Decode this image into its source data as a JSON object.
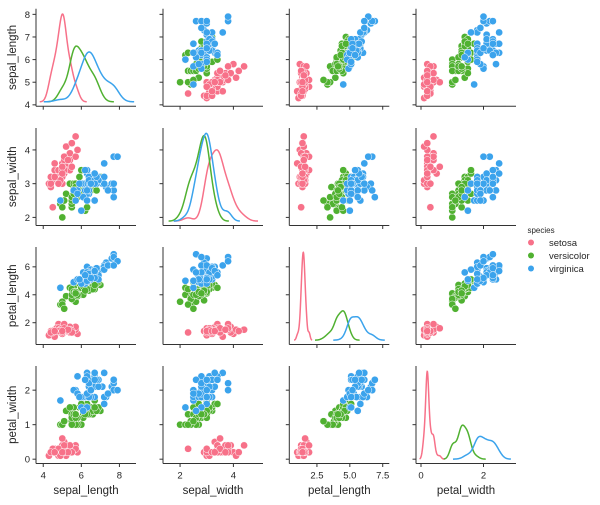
{
  "chart_data": {
    "type": "scatter",
    "kind": "pairplot",
    "diagonal": "kde",
    "hue": "species",
    "variables": [
      "sepal_length",
      "sepal_width",
      "petal_length",
      "petal_width"
    ],
    "axes": {
      "sepal_length": {
        "xlim": [
          3.62,
          8.87
        ],
        "ylim": [
          3.94,
          8.25
        ],
        "ticks": [
          4,
          5,
          6,
          7,
          8
        ],
        "xticks": [
          "4",
          "6",
          "8"
        ],
        "yticks": [
          "4",
          "5",
          "6",
          "7",
          "8"
        ]
      },
      "sepal_width": {
        "xlim": [
          1.36,
          5.11
        ],
        "ylim": [
          1.76,
          4.65
        ],
        "xticks": [
          "2",
          "4"
        ],
        "yticks": [
          "2",
          "3",
          "4"
        ]
      },
      "petal_length": {
        "xlim": [
          0.4,
          8.0
        ],
        "ylim": [
          0.44,
          7.42
        ],
        "xticks": [
          "2.5",
          "5.0",
          "7.5"
        ],
        "yticks": [
          "2",
          "4",
          "6"
        ]
      },
      "petal_width": {
        "xlim": [
          -0.16,
          3.04
        ],
        "ylim": [
          -0.125,
          2.7
        ],
        "xticks": [
          "0",
          "2"
        ],
        "yticks": [
          "0",
          "1",
          "2"
        ]
      }
    },
    "grid": false,
    "legend": {
      "title": "species",
      "placement": "right"
    },
    "series": [
      {
        "name": "setosa",
        "color": "#f77189",
        "values": [
          [
            5.1,
            3.5,
            1.4,
            0.2
          ],
          [
            4.9,
            3.0,
            1.4,
            0.2
          ],
          [
            4.7,
            3.2,
            1.3,
            0.2
          ],
          [
            4.6,
            3.1,
            1.5,
            0.2
          ],
          [
            5.0,
            3.6,
            1.4,
            0.2
          ],
          [
            5.4,
            3.9,
            1.7,
            0.4
          ],
          [
            4.6,
            3.4,
            1.4,
            0.3
          ],
          [
            5.0,
            3.4,
            1.5,
            0.2
          ],
          [
            4.4,
            2.9,
            1.4,
            0.2
          ],
          [
            4.9,
            3.1,
            1.5,
            0.1
          ],
          [
            5.4,
            3.7,
            1.5,
            0.2
          ],
          [
            4.8,
            3.4,
            1.6,
            0.2
          ],
          [
            4.8,
            3.0,
            1.4,
            0.1
          ],
          [
            4.3,
            3.0,
            1.1,
            0.1
          ],
          [
            5.8,
            4.0,
            1.2,
            0.2
          ],
          [
            5.7,
            4.4,
            1.5,
            0.4
          ],
          [
            5.4,
            3.9,
            1.3,
            0.4
          ],
          [
            5.1,
            3.5,
            1.4,
            0.3
          ],
          [
            5.7,
            3.8,
            1.7,
            0.3
          ],
          [
            5.1,
            3.8,
            1.5,
            0.3
          ],
          [
            5.4,
            3.4,
            1.7,
            0.2
          ],
          [
            5.1,
            3.7,
            1.5,
            0.4
          ],
          [
            4.6,
            3.6,
            1.0,
            0.2
          ],
          [
            5.1,
            3.3,
            1.7,
            0.5
          ],
          [
            4.8,
            3.4,
            1.9,
            0.2
          ],
          [
            5.0,
            3.0,
            1.6,
            0.2
          ],
          [
            5.0,
            3.4,
            1.6,
            0.4
          ],
          [
            5.2,
            3.5,
            1.5,
            0.2
          ],
          [
            5.2,
            3.4,
            1.4,
            0.2
          ],
          [
            4.7,
            3.2,
            1.6,
            0.2
          ],
          [
            4.8,
            3.1,
            1.6,
            0.2
          ],
          [
            5.4,
            3.4,
            1.5,
            0.4
          ],
          [
            5.2,
            4.1,
            1.5,
            0.1
          ],
          [
            5.5,
            4.2,
            1.4,
            0.2
          ],
          [
            4.9,
            3.1,
            1.5,
            0.1
          ],
          [
            5.0,
            3.2,
            1.2,
            0.2
          ],
          [
            5.5,
            3.5,
            1.3,
            0.2
          ],
          [
            4.9,
            3.1,
            1.5,
            0.1
          ],
          [
            4.4,
            3.0,
            1.3,
            0.2
          ],
          [
            5.1,
            3.4,
            1.5,
            0.2
          ],
          [
            5.0,
            3.5,
            1.3,
            0.3
          ],
          [
            4.5,
            2.3,
            1.3,
            0.3
          ],
          [
            4.4,
            3.2,
            1.3,
            0.2
          ],
          [
            5.0,
            3.5,
            1.6,
            0.6
          ],
          [
            5.1,
            3.8,
            1.9,
            0.4
          ],
          [
            4.8,
            3.0,
            1.4,
            0.3
          ],
          [
            5.1,
            3.8,
            1.6,
            0.2
          ],
          [
            4.6,
            3.2,
            1.4,
            0.2
          ],
          [
            5.3,
            3.7,
            1.5,
            0.2
          ],
          [
            5.0,
            3.3,
            1.4,
            0.2
          ]
        ]
      },
      {
        "name": "versicolor",
        "color": "#50b131",
        "values": [
          [
            7.0,
            3.2,
            4.7,
            1.4
          ],
          [
            6.4,
            3.2,
            4.5,
            1.5
          ],
          [
            6.9,
            3.1,
            4.9,
            1.5
          ],
          [
            5.5,
            2.3,
            4.0,
            1.3
          ],
          [
            6.5,
            2.8,
            4.6,
            1.5
          ],
          [
            5.7,
            2.8,
            4.5,
            1.3
          ],
          [
            6.3,
            3.3,
            4.7,
            1.6
          ],
          [
            4.9,
            2.4,
            3.3,
            1.0
          ],
          [
            6.6,
            2.9,
            4.6,
            1.3
          ],
          [
            5.2,
            2.7,
            3.9,
            1.4
          ],
          [
            5.0,
            2.0,
            3.5,
            1.0
          ],
          [
            5.9,
            3.0,
            4.2,
            1.5
          ],
          [
            6.0,
            2.2,
            4.0,
            1.0
          ],
          [
            6.1,
            2.9,
            4.7,
            1.4
          ],
          [
            5.6,
            2.9,
            3.6,
            1.3
          ],
          [
            6.7,
            3.1,
            4.4,
            1.4
          ],
          [
            5.6,
            3.0,
            4.5,
            1.5
          ],
          [
            5.8,
            2.7,
            4.1,
            1.0
          ],
          [
            6.2,
            2.2,
            4.5,
            1.5
          ],
          [
            5.6,
            2.5,
            3.9,
            1.1
          ],
          [
            5.9,
            3.2,
            4.8,
            1.8
          ],
          [
            6.1,
            2.8,
            4.0,
            1.3
          ],
          [
            6.3,
            2.5,
            4.9,
            1.5
          ],
          [
            6.1,
            2.8,
            4.7,
            1.2
          ],
          [
            6.4,
            2.9,
            4.3,
            1.3
          ],
          [
            6.6,
            3.0,
            4.4,
            1.4
          ],
          [
            6.8,
            2.8,
            4.8,
            1.4
          ],
          [
            6.7,
            3.0,
            5.0,
            1.7
          ],
          [
            6.0,
            2.9,
            4.5,
            1.5
          ],
          [
            5.7,
            2.6,
            3.5,
            1.0
          ],
          [
            5.5,
            2.4,
            3.8,
            1.1
          ],
          [
            5.5,
            2.4,
            3.7,
            1.0
          ],
          [
            5.8,
            2.7,
            3.9,
            1.2
          ],
          [
            6.0,
            2.7,
            5.1,
            1.6
          ],
          [
            5.4,
            3.0,
            4.5,
            1.5
          ],
          [
            6.0,
            3.4,
            4.5,
            1.6
          ],
          [
            6.7,
            3.1,
            4.7,
            1.5
          ],
          [
            6.3,
            2.3,
            4.4,
            1.3
          ],
          [
            5.6,
            3.0,
            4.1,
            1.3
          ],
          [
            5.5,
            2.5,
            4.0,
            1.3
          ],
          [
            5.5,
            2.6,
            4.4,
            1.2
          ],
          [
            6.1,
            3.0,
            4.6,
            1.4
          ],
          [
            5.8,
            2.6,
            4.0,
            1.2
          ],
          [
            5.0,
            2.3,
            3.3,
            1.0
          ],
          [
            5.6,
            2.7,
            4.2,
            1.3
          ],
          [
            5.7,
            3.0,
            4.2,
            1.2
          ],
          [
            5.7,
            2.9,
            4.2,
            1.3
          ],
          [
            6.2,
            2.9,
            4.3,
            1.3
          ],
          [
            5.1,
            2.5,
            3.0,
            1.1
          ],
          [
            5.7,
            2.8,
            4.1,
            1.3
          ]
        ]
      },
      {
        "name": "virginica",
        "color": "#3ba3ec",
        "values": [
          [
            6.3,
            3.3,
            6.0,
            2.5
          ],
          [
            5.8,
            2.7,
            5.1,
            1.9
          ],
          [
            7.1,
            3.0,
            5.9,
            2.1
          ],
          [
            6.3,
            2.9,
            5.6,
            1.8
          ],
          [
            6.5,
            3.0,
            5.8,
            2.2
          ],
          [
            7.6,
            3.0,
            6.6,
            2.1
          ],
          [
            4.9,
            2.5,
            4.5,
            1.7
          ],
          [
            7.3,
            2.9,
            6.3,
            1.8
          ],
          [
            6.7,
            2.5,
            5.8,
            1.8
          ],
          [
            7.2,
            3.6,
            6.1,
            2.5
          ],
          [
            6.5,
            3.2,
            5.1,
            2.0
          ],
          [
            6.4,
            2.7,
            5.3,
            1.9
          ],
          [
            6.8,
            3.0,
            5.5,
            2.1
          ],
          [
            5.7,
            2.5,
            5.0,
            2.0
          ],
          [
            5.8,
            2.8,
            5.1,
            2.4
          ],
          [
            6.4,
            3.2,
            5.3,
            2.3
          ],
          [
            6.5,
            3.0,
            5.5,
            1.8
          ],
          [
            7.7,
            3.8,
            6.7,
            2.2
          ],
          [
            7.7,
            2.6,
            6.9,
            2.3
          ],
          [
            6.0,
            2.2,
            5.0,
            1.5
          ],
          [
            6.9,
            3.2,
            5.7,
            2.3
          ],
          [
            5.6,
            2.8,
            4.9,
            2.0
          ],
          [
            7.7,
            2.8,
            6.7,
            2.0
          ],
          [
            6.3,
            2.7,
            4.9,
            1.8
          ],
          [
            6.7,
            3.3,
            5.7,
            2.1
          ],
          [
            7.2,
            3.2,
            6.0,
            1.8
          ],
          [
            6.2,
            2.8,
            4.8,
            1.8
          ],
          [
            6.1,
            3.0,
            4.9,
            1.8
          ],
          [
            6.4,
            2.8,
            5.6,
            2.1
          ],
          [
            7.2,
            3.0,
            5.8,
            1.6
          ],
          [
            7.4,
            2.8,
            6.1,
            1.9
          ],
          [
            7.9,
            3.8,
            6.4,
            2.0
          ],
          [
            6.4,
            2.8,
            5.6,
            2.2
          ],
          [
            6.3,
            2.8,
            5.1,
            1.5
          ],
          [
            6.1,
            2.6,
            5.6,
            1.4
          ],
          [
            7.7,
            3.0,
            6.1,
            2.3
          ],
          [
            6.3,
            3.4,
            5.6,
            2.4
          ],
          [
            6.4,
            3.1,
            5.5,
            1.8
          ],
          [
            6.0,
            3.0,
            4.8,
            1.8
          ],
          [
            6.9,
            3.1,
            5.4,
            2.1
          ],
          [
            6.7,
            3.1,
            5.6,
            2.4
          ],
          [
            6.9,
            3.1,
            5.1,
            2.3
          ],
          [
            5.8,
            2.7,
            5.1,
            1.9
          ],
          [
            6.8,
            3.2,
            5.9,
            2.3
          ],
          [
            6.7,
            3.3,
            5.7,
            2.5
          ],
          [
            6.7,
            3.0,
            5.2,
            2.3
          ],
          [
            6.3,
            2.5,
            5.0,
            1.9
          ],
          [
            6.5,
            3.0,
            5.2,
            2.0
          ],
          [
            6.2,
            3.4,
            5.4,
            2.3
          ],
          [
            5.9,
            3.0,
            5.1,
            1.8
          ]
        ]
      }
    ]
  }
}
